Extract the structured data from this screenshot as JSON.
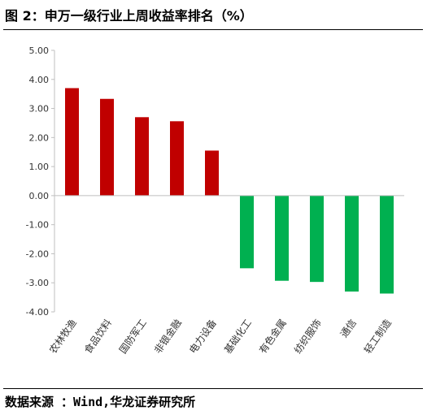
{
  "figure": {
    "title": "图 2：申万一级行业上周收益率排名（%）",
    "source": "数据来源 ：Wind,华龙证券研究所"
  },
  "chart_data": {
    "type": "bar",
    "categories": [
      "农林牧渔",
      "食品饮料",
      "国防军工",
      "非银金融",
      "电力设备",
      "基础化工",
      "有色金属",
      "纺织服饰",
      "通信",
      "轻工制造"
    ],
    "values": [
      3.7,
      3.33,
      2.7,
      2.56,
      1.55,
      -2.5,
      -2.93,
      -2.97,
      -3.3,
      -3.37
    ],
    "ylim": [
      -4.0,
      5.0
    ],
    "yticks": [
      "5.00",
      "4.00",
      "3.00",
      "2.00",
      "1.00",
      "0.00",
      "-1.00",
      "-2.00",
      "-3.00",
      "-4.00"
    ],
    "grid": false,
    "legend": "none",
    "colors": {
      "positive": "#c00000",
      "negative": "#00b050"
    }
  }
}
